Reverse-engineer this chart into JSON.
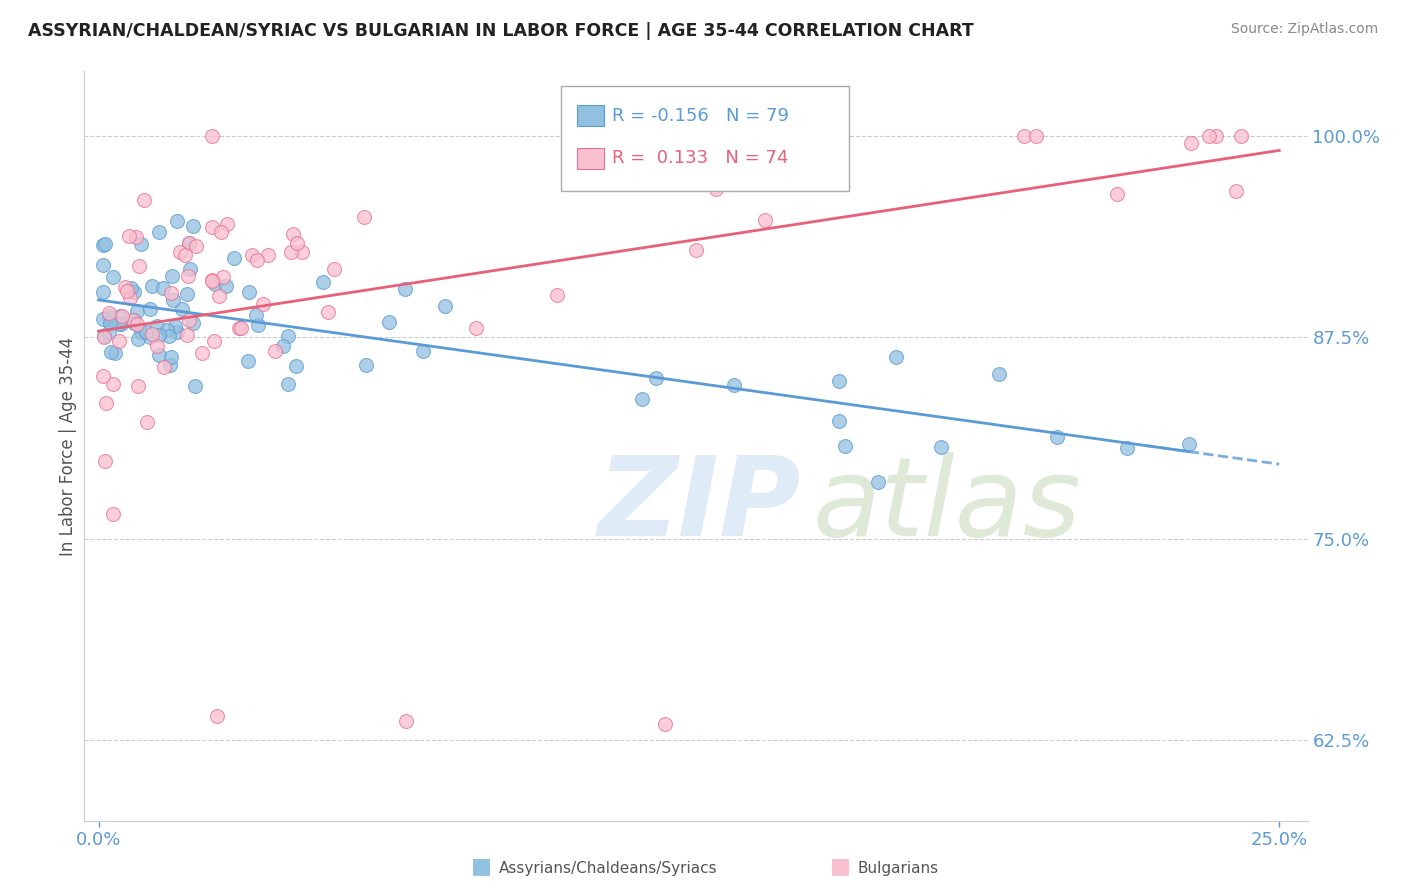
{
  "title": "ASSYRIAN/CHALDEAN/SYRIAC VS BULGARIAN IN LABOR FORCE | AGE 35-44 CORRELATION CHART",
  "source": "Source: ZipAtlas.com",
  "ylabel": "In Labor Force | Age 35-44",
  "ytick_labels": [
    "62.5%",
    "75.0%",
    "87.5%",
    "100.0%"
  ],
  "ytick_values": [
    0.625,
    0.75,
    0.875,
    1.0
  ],
  "xlim": [
    0.0,
    0.25
  ],
  "ylim": [
    0.575,
    1.04
  ],
  "blue_color": "#92C0E0",
  "blue_edge_color": "#5B9BD5",
  "pink_color": "#F9C0CF",
  "pink_edge_color": "#E87090",
  "blue_line_color": "#5B9BD5",
  "pink_line_color": "#E8607A",
  "grid_color": "#CCCCCC",
  "tick_color": "#5B9BD5",
  "ylabel_color": "#555555",
  "legend_r1_color": "#5B9BD5",
  "legend_r2_color": "#E8607A",
  "watermark_zip_color": "#C8DCF0",
  "watermark_atlas_color": "#C8E0C0",
  "source_color": "#888888"
}
